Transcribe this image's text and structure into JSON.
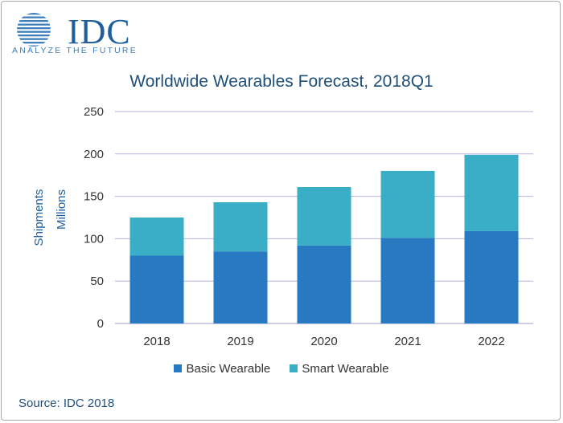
{
  "logo": {
    "name": "IDC",
    "tagline": "ANALYZE THE FUTURE"
  },
  "source": "Source: IDC 2018",
  "colors": {
    "basic": "#2779c2",
    "smart": "#39aec6",
    "grid": "#b4b4dc",
    "brand": "#1f5f9d"
  },
  "chart_data": {
    "type": "bar",
    "stacked": true,
    "title": "Worldwide Wearables Forecast, 2018Q1",
    "xlabel": "",
    "ylabel": [
      "Shipments",
      "Millions"
    ],
    "ylim": [
      0,
      250
    ],
    "yticks": [
      0,
      50,
      100,
      150,
      200,
      250
    ],
    "grid": true,
    "legend_position": "bottom",
    "categories": [
      "2018",
      "2019",
      "2020",
      "2021",
      "2022"
    ],
    "series": [
      {
        "name": "Basic Wearable",
        "values": [
          80,
          85,
          92,
          101,
          109
        ]
      },
      {
        "name": "Smart Wearable",
        "values": [
          45,
          58,
          69,
          79,
          90
        ]
      }
    ]
  }
}
